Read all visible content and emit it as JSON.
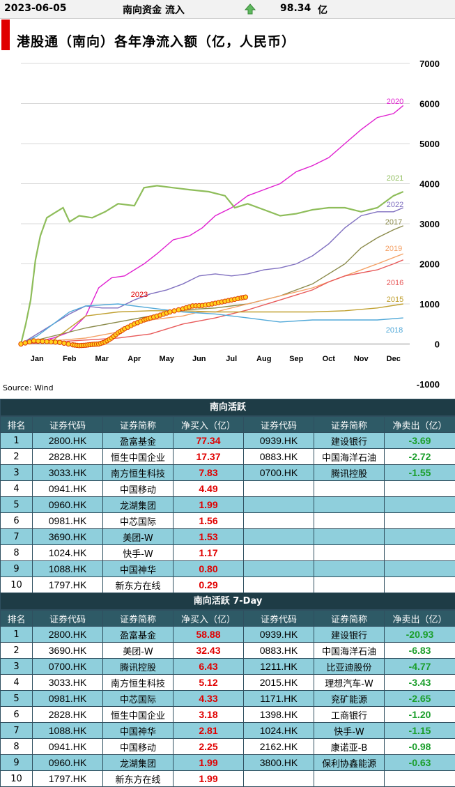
{
  "header": {
    "date": "2023-06-05",
    "label": "南向资金 流入",
    "value": "98.34",
    "unit": "亿",
    "arrow": "up-arrow-icon"
  },
  "page_title": "港股通（南向）各年净流入额（亿，人民币）",
  "source": "Source: Wind",
  "chart_data": {
    "type": "line",
    "title": "港股通（南向）各年净流入额（亿，人民币）",
    "months": [
      "Jan",
      "Feb",
      "Mar",
      "Apr",
      "May",
      "Jun",
      "Jul",
      "Aug",
      "Sep",
      "Oct",
      "Nov",
      "Dec"
    ],
    "y_ticks": [
      "7000",
      "6000",
      "5000",
      "4000",
      "3000",
      "2000",
      "1000",
      "0",
      "-1000"
    ],
    "ylim": [
      -1000,
      7000
    ],
    "grid": true,
    "legend": "inline labels at line ends",
    "series": [
      {
        "name": "2020",
        "color": "#e020d0",
        "points": [
          [
            0,
            0
          ],
          [
            0.5,
            60
          ],
          [
            1,
            150
          ],
          [
            1.5,
            300
          ],
          [
            2,
            700
          ],
          [
            2.4,
            1400
          ],
          [
            2.8,
            1650
          ],
          [
            3.2,
            1700
          ],
          [
            3.8,
            2000
          ],
          [
            4.2,
            2250
          ],
          [
            4.7,
            2600
          ],
          [
            5.2,
            2700
          ],
          [
            5.6,
            2900
          ],
          [
            6,
            3200
          ],
          [
            6.5,
            3400
          ],
          [
            7,
            3700
          ],
          [
            7.5,
            3850
          ],
          [
            8,
            4000
          ],
          [
            8.5,
            4300
          ],
          [
            9,
            4450
          ],
          [
            9.5,
            4650
          ],
          [
            10,
            5000
          ],
          [
            10.5,
            5350
          ],
          [
            11,
            5650
          ],
          [
            11.5,
            5750
          ],
          [
            11.8,
            5950
          ]
        ]
      },
      {
        "name": "2021",
        "color": "#8ebd5a",
        "points": [
          [
            0,
            0
          ],
          [
            0.15,
            500
          ],
          [
            0.3,
            1100
          ],
          [
            0.45,
            2100
          ],
          [
            0.6,
            2700
          ],
          [
            0.8,
            3150
          ],
          [
            1,
            3250
          ],
          [
            1.3,
            3400
          ],
          [
            1.5,
            3050
          ],
          [
            1.8,
            3200
          ],
          [
            2.2,
            3150
          ],
          [
            2.6,
            3300
          ],
          [
            3,
            3500
          ],
          [
            3.5,
            3450
          ],
          [
            3.8,
            3900
          ],
          [
            4.2,
            3950
          ],
          [
            4.7,
            3900
          ],
          [
            5.2,
            3850
          ],
          [
            5.8,
            3800
          ],
          [
            6.3,
            3700
          ],
          [
            6.6,
            3400
          ],
          [
            7,
            3500
          ],
          [
            7.5,
            3350
          ],
          [
            8,
            3200
          ],
          [
            8.5,
            3250
          ],
          [
            9,
            3350
          ],
          [
            9.5,
            3400
          ],
          [
            10,
            3400
          ],
          [
            10.5,
            3300
          ],
          [
            11,
            3400
          ],
          [
            11.5,
            3700
          ],
          [
            11.8,
            3800
          ]
        ]
      },
      {
        "name": "2022",
        "color": "#8070c0",
        "points": [
          [
            0,
            0
          ],
          [
            0.5,
            250
          ],
          [
            1,
            500
          ],
          [
            1.5,
            750
          ],
          [
            2,
            950
          ],
          [
            2.5,
            900
          ],
          [
            3,
            900
          ],
          [
            3.5,
            1100
          ],
          [
            4,
            1250
          ],
          [
            4.5,
            1350
          ],
          [
            5,
            1500
          ],
          [
            5.5,
            1700
          ],
          [
            6,
            1750
          ],
          [
            6.5,
            1700
          ],
          [
            7,
            1750
          ],
          [
            7.5,
            1850
          ],
          [
            8,
            1900
          ],
          [
            8.5,
            2000
          ],
          [
            9,
            2200
          ],
          [
            9.5,
            2500
          ],
          [
            10,
            2900
          ],
          [
            10.5,
            3200
          ],
          [
            11,
            3300
          ],
          [
            11.5,
            3300
          ],
          [
            11.8,
            3400
          ]
        ]
      },
      {
        "name": "2017",
        "color": "#8a8a4a",
        "points": [
          [
            0,
            0
          ],
          [
            1,
            200
          ],
          [
            2,
            400
          ],
          [
            3,
            550
          ],
          [
            4,
            700
          ],
          [
            5,
            850
          ],
          [
            6,
            900
          ],
          [
            7,
            1000
          ],
          [
            8,
            1200
          ],
          [
            9,
            1500
          ],
          [
            10,
            2000
          ],
          [
            10.5,
            2400
          ],
          [
            11,
            2650
          ],
          [
            11.5,
            2850
          ],
          [
            11.8,
            2950
          ]
        ]
      },
      {
        "name": "2019",
        "color": "#f4a064",
        "points": [
          [
            0,
            0
          ],
          [
            0.5,
            20
          ],
          [
            1,
            80
          ],
          [
            2,
            150
          ],
          [
            3,
            300
          ],
          [
            3.5,
            500
          ],
          [
            4,
            600
          ],
          [
            5,
            700
          ],
          [
            5.5,
            800
          ],
          [
            6,
            800
          ],
          [
            7,
            1000
          ],
          [
            8,
            1200
          ],
          [
            9,
            1400
          ],
          [
            10,
            1700
          ],
          [
            11,
            2000
          ],
          [
            11.8,
            2250
          ]
        ]
      },
      {
        "name": "2016",
        "color": "#e85a5a",
        "points": [
          [
            0,
            0
          ],
          [
            1,
            50
          ],
          [
            2,
            100
          ],
          [
            3,
            150
          ],
          [
            4,
            250
          ],
          [
            5,
            500
          ],
          [
            6,
            650
          ],
          [
            7,
            850
          ],
          [
            8,
            1100
          ],
          [
            9,
            1350
          ],
          [
            9.5,
            1550
          ],
          [
            10,
            1700
          ],
          [
            11,
            1850
          ],
          [
            11.5,
            2000
          ],
          [
            11.8,
            2100
          ]
        ]
      },
      {
        "name": "2015",
        "color": "#c0a030",
        "points": [
          [
            0,
            0
          ],
          [
            1,
            100
          ],
          [
            2,
            700
          ],
          [
            3,
            800
          ],
          [
            4,
            830
          ],
          [
            5,
            830
          ],
          [
            6,
            800
          ],
          [
            7,
            800
          ],
          [
            8,
            800
          ],
          [
            9,
            800
          ],
          [
            10,
            830
          ],
          [
            11,
            900
          ],
          [
            11.8,
            1000
          ]
        ]
      },
      {
        "name": "2018",
        "color": "#50a8d8",
        "points": [
          [
            0,
            0
          ],
          [
            0.5,
            200
          ],
          [
            1,
            500
          ],
          [
            1.5,
            800
          ],
          [
            2,
            950
          ],
          [
            3,
            1000
          ],
          [
            4,
            900
          ],
          [
            5,
            800
          ],
          [
            6,
            750
          ],
          [
            7,
            650
          ],
          [
            8,
            550
          ],
          [
            9,
            600
          ],
          [
            10,
            600
          ],
          [
            11,
            600
          ],
          [
            11.8,
            650
          ]
        ]
      },
      {
        "name": "2023",
        "color": "#e00000",
        "points": [
          [
            0,
            0
          ],
          [
            0.4,
            80
          ],
          [
            0.8,
            60
          ],
          [
            1.2,
            40
          ],
          [
            1.6,
            -20
          ],
          [
            1.8,
            -40
          ],
          [
            2,
            -30
          ],
          [
            2.2,
            -10
          ],
          [
            2.4,
            0
          ],
          [
            2.6,
            50
          ],
          [
            2.8,
            150
          ],
          [
            3,
            280
          ],
          [
            3.2,
            380
          ],
          [
            3.5,
            500
          ],
          [
            3.8,
            600
          ],
          [
            4,
            650
          ],
          [
            4.3,
            720
          ],
          [
            4.6,
            800
          ],
          [
            5,
            880
          ],
          [
            5.3,
            950
          ],
          [
            5.6,
            960
          ],
          [
            5.9,
            1000
          ],
          [
            6.2,
            1050
          ],
          [
            6.5,
            1100
          ],
          [
            6.8,
            1150
          ],
          [
            7,
            1180
          ]
        ]
      }
    ]
  },
  "table1": {
    "caption": "南向活跃",
    "headers": [
      "排名",
      "证券代码",
      "证券简称",
      "净买入（亿）",
      "证券代码",
      "证券简称",
      "净卖出（亿）"
    ],
    "rows": [
      [
        "1",
        "2800.HK",
        "盈富基金",
        "77.34",
        "0939.HK",
        "建设银行",
        "-3.69"
      ],
      [
        "2",
        "2828.HK",
        "恒生中国企业",
        "17.37",
        "0883.HK",
        "中国海洋石油",
        "-2.72"
      ],
      [
        "3",
        "3033.HK",
        "南方恒生科技",
        "7.83",
        "0700.HK",
        "腾讯控股",
        "-1.55"
      ],
      [
        "4",
        "0941.HK",
        "中国移动",
        "4.49",
        "",
        "",
        ""
      ],
      [
        "5",
        "0960.HK",
        "龙湖集团",
        "1.99",
        "",
        "",
        ""
      ],
      [
        "6",
        "0981.HK",
        "中芯国际",
        "1.56",
        "",
        "",
        ""
      ],
      [
        "7",
        "3690.HK",
        "美团-W",
        "1.53",
        "",
        "",
        ""
      ],
      [
        "8",
        "1024.HK",
        "快手-W",
        "1.17",
        "",
        "",
        ""
      ],
      [
        "9",
        "1088.HK",
        "中国神华",
        "0.80",
        "",
        "",
        ""
      ],
      [
        "10",
        "1797.HK",
        "新东方在线",
        "0.29",
        "",
        "",
        ""
      ]
    ]
  },
  "table2": {
    "caption": "南向活跃 7-Day",
    "headers": [
      "排名",
      "证券代码",
      "证券简称",
      "净买入（亿）",
      "证券代码",
      "证券简称",
      "净卖出（亿）"
    ],
    "rows": [
      [
        "1",
        "2800.HK",
        "盈富基金",
        "58.88",
        "0939.HK",
        "建设银行",
        "-20.93"
      ],
      [
        "2",
        "3690.HK",
        "美团-W",
        "32.43",
        "0883.HK",
        "中国海洋石油",
        "-6.83"
      ],
      [
        "3",
        "0700.HK",
        "腾讯控股",
        "6.43",
        "1211.HK",
        "比亚迪股份",
        "-4.77"
      ],
      [
        "4",
        "3033.HK",
        "南方恒生科技",
        "5.12",
        "2015.HK",
        "理想汽车-W",
        "-3.43"
      ],
      [
        "5",
        "0981.HK",
        "中芯国际",
        "4.33",
        "1171.HK",
        "兖矿能源",
        "-2.65"
      ],
      [
        "6",
        "2828.HK",
        "恒生中国企业",
        "3.18",
        "1398.HK",
        "工商银行",
        "-1.20"
      ],
      [
        "7",
        "1088.HK",
        "中国神华",
        "2.81",
        "1024.HK",
        "快手-W",
        "-1.15"
      ],
      [
        "8",
        "0941.HK",
        "中国移动",
        "2.25",
        "2162.HK",
        "康诺亚-B",
        "-0.98"
      ],
      [
        "9",
        "0960.HK",
        "龙湖集团",
        "1.99",
        "3800.HK",
        "保利协鑫能源",
        "-0.63"
      ],
      [
        "10",
        "1797.HK",
        "新东方在线",
        "1.99",
        "",
        "",
        ""
      ]
    ]
  }
}
